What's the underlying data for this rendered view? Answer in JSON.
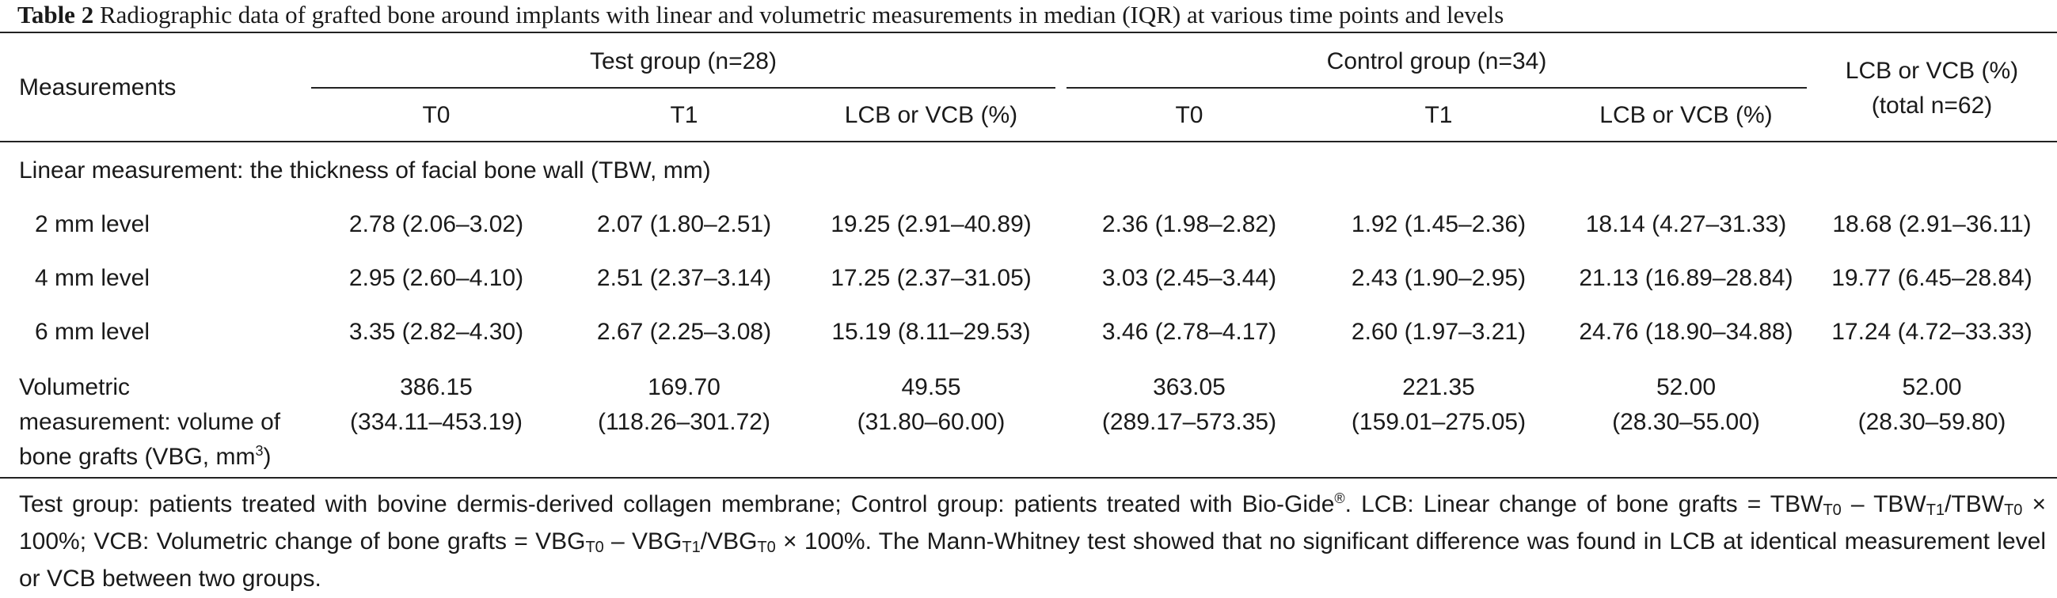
{
  "caption": {
    "label": "Table 2",
    "text": "Radiographic data of grafted bone around implants with linear and volumetric measurements in median (IQR) at various time points and levels"
  },
  "header": {
    "measurements": "Measurements",
    "test_group": "Test group (n=28)",
    "control_group": "Control group (n=34)",
    "total_col_line1": "LCB or VCB (%)",
    "total_col_line2": "(total n=62)",
    "sub": [
      "T0",
      "T1",
      "LCB or VCB (%)",
      "T0",
      "T1",
      "LCB or VCB (%)"
    ]
  },
  "section_linear": "Linear measurement: the thickness of facial bone wall (TBW, mm)",
  "rows": [
    {
      "label": "2 mm level",
      "values": [
        "2.78 (2.06–3.02)",
        "2.07 (1.80–2.51)",
        "19.25 (2.91–40.89)",
        "2.36 (1.98–2.82)",
        "1.92 (1.45–2.36)",
        "18.14 (4.27–31.33)",
        "18.68 (2.91–36.11)"
      ]
    },
    {
      "label": "4 mm level",
      "values": [
        "2.95 (2.60–4.10)",
        "2.51 (2.37–3.14)",
        "17.25 (2.37–31.05)",
        "3.03 (2.45–3.44)",
        "2.43 (1.90–2.95)",
        "21.13 (16.89–28.84)",
        "19.77 (6.45–28.84)"
      ]
    },
    {
      "label": "6 mm level",
      "values": [
        "3.35 (2.82–4.30)",
        "2.67 (2.25–3.08)",
        "15.19 (8.11–29.53)",
        "3.46 (2.78–4.17)",
        "2.60 (1.97–3.21)",
        "24.76 (18.90–34.88)",
        "17.24 (4.72–33.33)"
      ]
    }
  ],
  "volumetric": {
    "label_line1": "Volumetric",
    "label_line2": "measurement: volume of",
    "label_line3": "bone grafts (VBG, mm",
    "label_sup": "3",
    "label_end": ")",
    "medians": [
      "386.15",
      "169.70",
      "49.55",
      "363.05",
      "221.35",
      "52.00",
      "52.00"
    ],
    "iqrs": [
      "(334.11–453.19)",
      "(118.26–301.72)",
      "(31.80–60.00)",
      "(289.17–573.35)",
      "(159.01–275.05)",
      "(28.30–55.00)",
      "(28.30–59.80)"
    ]
  },
  "footnote": {
    "p1": "Test group: patients treated with bovine dermis-derived collagen membrane; Control group: patients treated with Bio-Gide",
    "reg": "®",
    "p2": ". LCB: Linear change of bone grafts = TBW",
    "s_t0a": "T0",
    "p3": " – TBW",
    "s_t1a": "T1",
    "p4": "/TBW",
    "s_t0b": "T0",
    "p5": " × 100%; VCB: Volumetric change of bone grafts = VBG",
    "s_t0c": "T0",
    "p6": " – VBG",
    "s_t1b": "T1",
    "p7": "/VBG",
    "s_t0d": "T0",
    "p8": " × 100%. The Mann-Whitney test showed that no significant difference was found in LCB at identical measurement level or VCB between two groups."
  }
}
